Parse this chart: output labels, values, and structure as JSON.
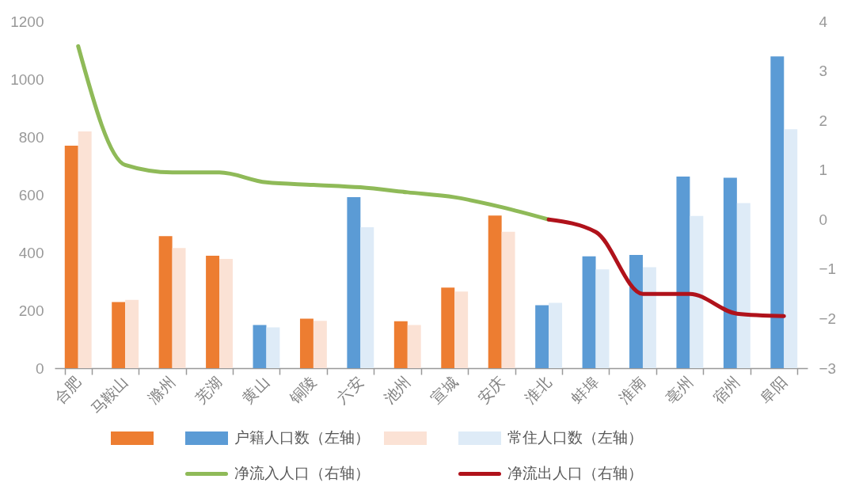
{
  "chart_data": {
    "type": "bar",
    "categories": [
      "合肥",
      "马鞍山",
      "滁州",
      "芜湖",
      "黄山",
      "铜陵",
      "六安",
      "池州",
      "宣城",
      "安庆",
      "淮北",
      "蚌埠",
      "淮南",
      "亳州",
      "宿州",
      "阜阳"
    ],
    "series": [
      {
        "name": "户籍人口数（左轴）",
        "colors": [
          "#ed7d31",
          "#ed7d31",
          "#ed7d31",
          "#ed7d31",
          "#5b9bd5",
          "#ed7d31",
          "#5b9bd5",
          "#ed7d31",
          "#ed7d31",
          "#ed7d31",
          "#5b9bd5",
          "#5b9bd5",
          "#5b9bd5",
          "#5b9bd5",
          "#5b9bd5",
          "#5b9bd5"
        ],
        "values": [
          770,
          229,
          457,
          389,
          149,
          171,
          592,
          162,
          279,
          528,
          218,
          387,
          392,
          663,
          659,
          1079
        ]
      },
      {
        "name": "常住人口数（左轴）",
        "colors": [
          "#fbe2d5",
          "#fbe2d5",
          "#fbe2d5",
          "#fbe2d5",
          "#deebf7",
          "#fbe2d5",
          "#deebf7",
          "#fbe2d5",
          "#fbe2d5",
          "#fbe2d5",
          "#deebf7",
          "#deebf7",
          "#deebf7",
          "#deebf7",
          "#deebf7",
          "#deebf7"
        ],
        "values": [
          819,
          236,
          416,
          378,
          141,
          164,
          488,
          149,
          265,
          472,
          226,
          342,
          349,
          527,
          571,
          827
        ]
      },
      {
        "name": "净流入人口（右轴）",
        "type": "line",
        "axis": "y2",
        "color": "#8fba58",
        "values": [
          3.5,
          1.1,
          0.95,
          0.95,
          0.75,
          0.7,
          0.65,
          0.55,
          0.45,
          0.25,
          0,
          null,
          null,
          null,
          null,
          null
        ]
      },
      {
        "name": "净流出人口（右轴）",
        "type": "line",
        "axis": "y2",
        "color": "#b0121b",
        "values": [
          null,
          null,
          null,
          null,
          null,
          null,
          null,
          null,
          null,
          null,
          0,
          -0.25,
          -1.5,
          -1.5,
          -1.9,
          -1.95
        ]
      }
    ],
    "ylim": [
      0,
      1200
    ],
    "yticks": [
      0,
      200,
      400,
      600,
      800,
      1000,
      1200
    ],
    "y2lim": [
      -3,
      4
    ],
    "y2ticks": [
      -3,
      -2,
      -1,
      0,
      1,
      2,
      3,
      4
    ],
    "legend": "bottom",
    "grid": false
  }
}
